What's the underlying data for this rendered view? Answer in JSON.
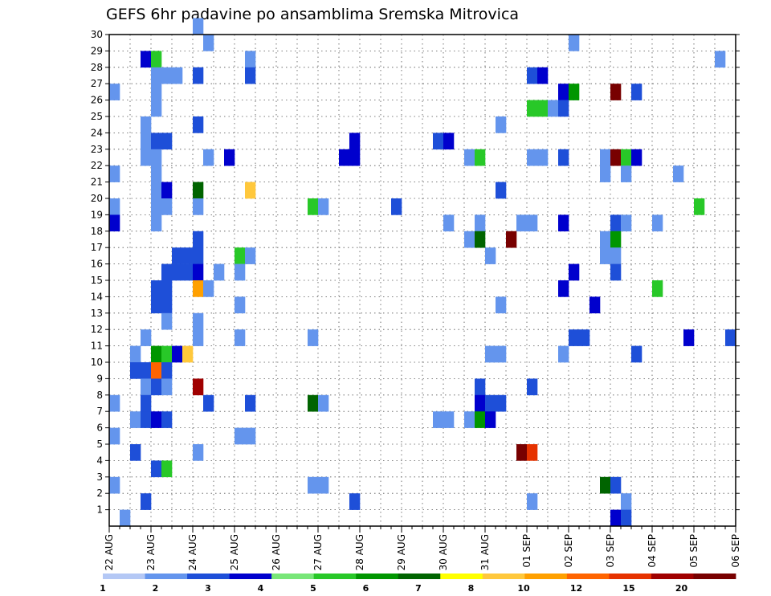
{
  "chart_data": {
    "type": "heatmap",
    "title": "GEFS 6hr padavine po ansamblima Sremska Mitrovica",
    "xlabel": "",
    "ylabel": "",
    "x_tick_labels": [
      "22 AUG",
      "23 AUG",
      "24 AUG",
      "25 AUG",
      "26 AUG",
      "27 AUG",
      "28 AUG",
      "29 AUG",
      "30 AUG",
      "31 AUG",
      "01 SEP",
      "02 SEP",
      "03 SEP",
      "04 SEP",
      "05 SEP",
      "06 SEP"
    ],
    "y_tick_labels": [
      "1",
      "2",
      "3",
      "4",
      "5",
      "6",
      "7",
      "8",
      "9",
      "10",
      "11",
      "12",
      "13",
      "14",
      "15",
      "16",
      "17",
      "18",
      "19",
      "20",
      "21",
      "22",
      "23",
      "24",
      "25",
      "26",
      "27",
      "28",
      "29",
      "30"
    ],
    "xlim": [
      0,
      60
    ],
    "ylim": [
      0,
      30
    ],
    "x_units": "6-hour steps from 22 AUG 00Z",
    "y_units": "ensemble member",
    "grid": true,
    "colorbar": {
      "placement": "bottom",
      "tick_labels": [
        "1",
        "2",
        "3",
        "4",
        "5",
        "6",
        "7",
        "8",
        "10",
        "12",
        "15",
        "20"
      ],
      "colors": [
        "#b4c8f5",
        "#6495ed",
        "#1e4fd8",
        "#0000cd",
        "#78e678",
        "#28c828",
        "#009600",
        "#006400",
        "#ffff00",
        "#ffc83c",
        "#ffa000",
        "#ff6400",
        "#e63200",
        "#a00000",
        "#780000"
      ]
    },
    "cells": [
      [
        0,
        26,
        1
      ],
      [
        0,
        21,
        1
      ],
      [
        0,
        19,
        1
      ],
      [
        0,
        18,
        3
      ],
      [
        0,
        7,
        1
      ],
      [
        0,
        5,
        1
      ],
      [
        0,
        2,
        1
      ],
      [
        1,
        0,
        1
      ],
      [
        2,
        10,
        1
      ],
      [
        2,
        9,
        2
      ],
      [
        2,
        6,
        1
      ],
      [
        2,
        4,
        2
      ],
      [
        3,
        24,
        1
      ],
      [
        3,
        23,
        1
      ],
      [
        3,
        22,
        1
      ],
      [
        3,
        11,
        1
      ],
      [
        3,
        9,
        2
      ],
      [
        3,
        8,
        1
      ],
      [
        3,
        7,
        2
      ],
      [
        3,
        6,
        2
      ],
      [
        3,
        1,
        2
      ],
      [
        3,
        28,
        3
      ],
      [
        4,
        28,
        5
      ],
      [
        4,
        26,
        1
      ],
      [
        4,
        27,
        1
      ],
      [
        4,
        25,
        1
      ],
      [
        4,
        23,
        2
      ],
      [
        4,
        22,
        1
      ],
      [
        4,
        21,
        1
      ],
      [
        4,
        20,
        1
      ],
      [
        4,
        19,
        1
      ],
      [
        4,
        18,
        1
      ],
      [
        4,
        14,
        2
      ],
      [
        4,
        13,
        2
      ],
      [
        4,
        10,
        6
      ],
      [
        4,
        9,
        11
      ],
      [
        4,
        8,
        2
      ],
      [
        4,
        6,
        3
      ],
      [
        4,
        3,
        2
      ],
      [
        5,
        27,
        1
      ],
      [
        5,
        23,
        2
      ],
      [
        5,
        20,
        3
      ],
      [
        5,
        19,
        1
      ],
      [
        5,
        15,
        2
      ],
      [
        5,
        14,
        2
      ],
      [
        5,
        13,
        2
      ],
      [
        5,
        12,
        1
      ],
      [
        5,
        10,
        5
      ],
      [
        5,
        9,
        2
      ],
      [
        5,
        8,
        1
      ],
      [
        5,
        6,
        2
      ],
      [
        5,
        3,
        5
      ],
      [
        6,
        27,
        1
      ],
      [
        6,
        16,
        2
      ],
      [
        6,
        15,
        2
      ],
      [
        6,
        10,
        3
      ],
      [
        7,
        16,
        2
      ],
      [
        7,
        15,
        2
      ],
      [
        7,
        10,
        9
      ],
      [
        8,
        30,
        1
      ],
      [
        8,
        27,
        2
      ],
      [
        8,
        24,
        2
      ],
      [
        8,
        20,
        7
      ],
      [
        8,
        19,
        1
      ],
      [
        8,
        17,
        2
      ],
      [
        8,
        16,
        2
      ],
      [
        8,
        15,
        3
      ],
      [
        8,
        14,
        10
      ],
      [
        8,
        12,
        1
      ],
      [
        8,
        11,
        1
      ],
      [
        8,
        8,
        13
      ],
      [
        8,
        4,
        1
      ],
      [
        9,
        29,
        1
      ],
      [
        9,
        22,
        1
      ],
      [
        9,
        14,
        1
      ],
      [
        9,
        7,
        2
      ],
      [
        10,
        15,
        1
      ],
      [
        11,
        22,
        3
      ],
      [
        12,
        16,
        5
      ],
      [
        12,
        15,
        1
      ],
      [
        12,
        13,
        1
      ],
      [
        12,
        11,
        1
      ],
      [
        12,
        5,
        1
      ],
      [
        13,
        28,
        1
      ],
      [
        13,
        27,
        2
      ],
      [
        13,
        20,
        9
      ],
      [
        13,
        16,
        1
      ],
      [
        13,
        7,
        2
      ],
      [
        13,
        5,
        1
      ],
      [
        19,
        19,
        5
      ],
      [
        19,
        11,
        1
      ],
      [
        19,
        7,
        7
      ],
      [
        19,
        2,
        1
      ],
      [
        20,
        19,
        1
      ],
      [
        20,
        7,
        1
      ],
      [
        20,
        2,
        1
      ],
      [
        23,
        23,
        3
      ],
      [
        23,
        22,
        3
      ],
      [
        23,
        1,
        2
      ],
      [
        22,
        22,
        3
      ],
      [
        27,
        19,
        2
      ],
      [
        31,
        23,
        2
      ],
      [
        31,
        6,
        1
      ],
      [
        32,
        23,
        3
      ],
      [
        32,
        6,
        1
      ],
      [
        32,
        18,
        1
      ],
      [
        34,
        22,
        1
      ],
      [
        34,
        17,
        1
      ],
      [
        34,
        6,
        1
      ],
      [
        35,
        22,
        5
      ],
      [
        35,
        18,
        1
      ],
      [
        35,
        17,
        7
      ],
      [
        35,
        8,
        2
      ],
      [
        35,
        7,
        3
      ],
      [
        35,
        6,
        6
      ],
      [
        36,
        16,
        1
      ],
      [
        36,
        10,
        1
      ],
      [
        36,
        7,
        2
      ],
      [
        36,
        6,
        3
      ],
      [
        37,
        24,
        1
      ],
      [
        37,
        20,
        2
      ],
      [
        37,
        13,
        1
      ],
      [
        37,
        10,
        1
      ],
      [
        37,
        7,
        2
      ],
      [
        38,
        17,
        14
      ],
      [
        39,
        18,
        1
      ],
      [
        39,
        4,
        14
      ],
      [
        40,
        22,
        1
      ],
      [
        40,
        18,
        1
      ],
      [
        40,
        8,
        2
      ],
      [
        40,
        4,
        12
      ],
      [
        40,
        1,
        1
      ],
      [
        40,
        27,
        2
      ],
      [
        40,
        25,
        5
      ],
      [
        41,
        27,
        3
      ],
      [
        41,
        25,
        5
      ],
      [
        41,
        22,
        1
      ],
      [
        42,
        25,
        1
      ],
      [
        43,
        26,
        3
      ],
      [
        43,
        25,
        2
      ],
      [
        43,
        22,
        2
      ],
      [
        43,
        18,
        3
      ],
      [
        43,
        14,
        3
      ],
      [
        43,
        10,
        1
      ],
      [
        44,
        29,
        1
      ],
      [
        44,
        26,
        6
      ],
      [
        44,
        15,
        3
      ],
      [
        44,
        11,
        2
      ],
      [
        45,
        11,
        2
      ],
      [
        46,
        13,
        3
      ],
      [
        47,
        22,
        1
      ],
      [
        47,
        21,
        1
      ],
      [
        47,
        17,
        1
      ],
      [
        47,
        16,
        1
      ],
      [
        47,
        2,
        7
      ],
      [
        48,
        26,
        14
      ],
      [
        48,
        22,
        14
      ],
      [
        48,
        18,
        2
      ],
      [
        48,
        17,
        6
      ],
      [
        48,
        16,
        1
      ],
      [
        48,
        15,
        2
      ],
      [
        48,
        2,
        2
      ],
      [
        48,
        0,
        3
      ],
      [
        49,
        22,
        5
      ],
      [
        49,
        18,
        1
      ],
      [
        49,
        21,
        1
      ],
      [
        49,
        1,
        1
      ],
      [
        49,
        0,
        2
      ],
      [
        50,
        26,
        2
      ],
      [
        50,
        22,
        3
      ],
      [
        50,
        10,
        2
      ],
      [
        52,
        18,
        1
      ],
      [
        52,
        14,
        5
      ],
      [
        54,
        21,
        1
      ],
      [
        55,
        11,
        3
      ],
      [
        56,
        19,
        5
      ],
      [
        58,
        28,
        1
      ],
      [
        59,
        11,
        2
      ]
    ]
  }
}
